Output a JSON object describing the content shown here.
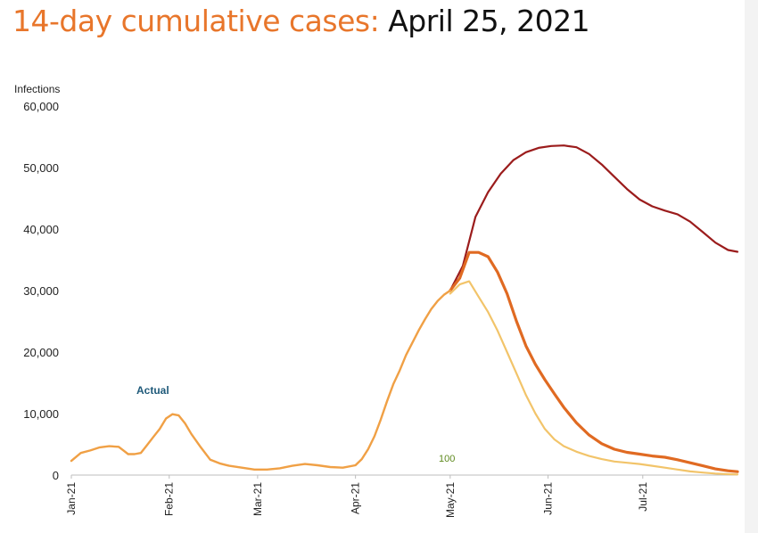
{
  "title": {
    "part1": "14-day cumulative cases:",
    "part2": "April 25, 2021"
  },
  "colors": {
    "title_accent": "#e8762b",
    "actual_label": "#1f5a7a",
    "label_100": "#5f8a1f"
  },
  "chart_data": {
    "type": "line",
    "ylabel": "Infections",
    "ylim": [
      0,
      60000
    ],
    "yticks": [
      "60,000",
      "50,000",
      "40,000",
      "30,000",
      "20,000",
      "10,000",
      "0"
    ],
    "ytick_values": [
      60000,
      50000,
      40000,
      30000,
      20000,
      10000,
      0
    ],
    "xticks": [
      "Jan-21",
      "Feb-21",
      "Mar-21",
      "Apr-21",
      "May-21",
      "Jun-21",
      "Jul-21"
    ],
    "xtick_days": [
      0,
      31,
      59,
      90,
      120,
      151,
      181
    ],
    "annotations": {
      "actual": "Actual",
      "label_100": "100"
    },
    "series": [
      {
        "color": "#9b1c1c",
        "x": [
          120,
          124,
          128,
          132,
          136,
          140,
          144,
          148,
          152,
          156,
          160,
          164,
          168,
          172,
          176,
          180,
          184,
          188,
          192,
          196,
          200,
          204,
          208,
          211
        ],
        "y": [
          30000,
          34000,
          42000,
          46000,
          49000,
          51200,
          52500,
          53200,
          53500,
          53600,
          53300,
          52200,
          50500,
          48500,
          46500,
          44800,
          43700,
          43000,
          42400,
          41200,
          39500,
          37800,
          36600,
          36300
        ]
      },
      {
        "color": "#e06a22",
        "x": [
          120,
          123,
          126,
          129,
          132,
          135,
          138,
          141,
          144,
          147,
          150,
          153,
          156,
          160,
          164,
          168,
          172,
          176,
          180,
          184,
          188,
          192,
          196,
          200,
          204,
          208,
          211
        ],
        "y": [
          30000,
          32000,
          36200,
          36200,
          35500,
          33000,
          29500,
          25000,
          21000,
          18000,
          15500,
          13200,
          11000,
          8500,
          6500,
          5100,
          4200,
          3700,
          3400,
          3100,
          2900,
          2500,
          2000,
          1500,
          1000,
          700,
          550
        ]
      },
      {
        "color": "#f2c46a",
        "x": [
          120,
          123,
          126,
          129,
          132,
          135,
          138,
          141,
          144,
          147,
          150,
          153,
          156,
          160,
          164,
          168,
          172,
          176,
          180,
          184,
          188,
          192,
          196,
          200,
          204,
          208,
          211
        ],
        "y": [
          29500,
          31000,
          31500,
          29000,
          26500,
          23500,
          20000,
          16500,
          13000,
          10000,
          7500,
          5800,
          4700,
          3800,
          3100,
          2600,
          2200,
          2000,
          1800,
          1500,
          1200,
          900,
          600,
          400,
          250,
          150,
          100
        ]
      },
      {
        "name": "Actual",
        "color": "#f0a045",
        "x": [
          0,
          3,
          6,
          9,
          12,
          15,
          18,
          20,
          22,
          24,
          26,
          28,
          30,
          32,
          34,
          36,
          38,
          41,
          44,
          47,
          50,
          54,
          58,
          62,
          66,
          70,
          74,
          78,
          82,
          86,
          90,
          92,
          94,
          96,
          98,
          100,
          102,
          104,
          106,
          108,
          110,
          112,
          114,
          116,
          118,
          120
        ],
        "y": [
          2300,
          3600,
          4000,
          4500,
          4700,
          4600,
          3400,
          3400,
          3600,
          4900,
          6200,
          7500,
          9200,
          9900,
          9700,
          8400,
          6700,
          4500,
          2500,
          1900,
          1500,
          1200,
          900,
          900,
          1100,
          1500,
          1800,
          1600,
          1300,
          1200,
          1600,
          2600,
          4200,
          6300,
          9000,
          12000,
          14800,
          17000,
          19500,
          21500,
          23500,
          25300,
          27000,
          28300,
          29300,
          30000
        ]
      }
    ]
  }
}
